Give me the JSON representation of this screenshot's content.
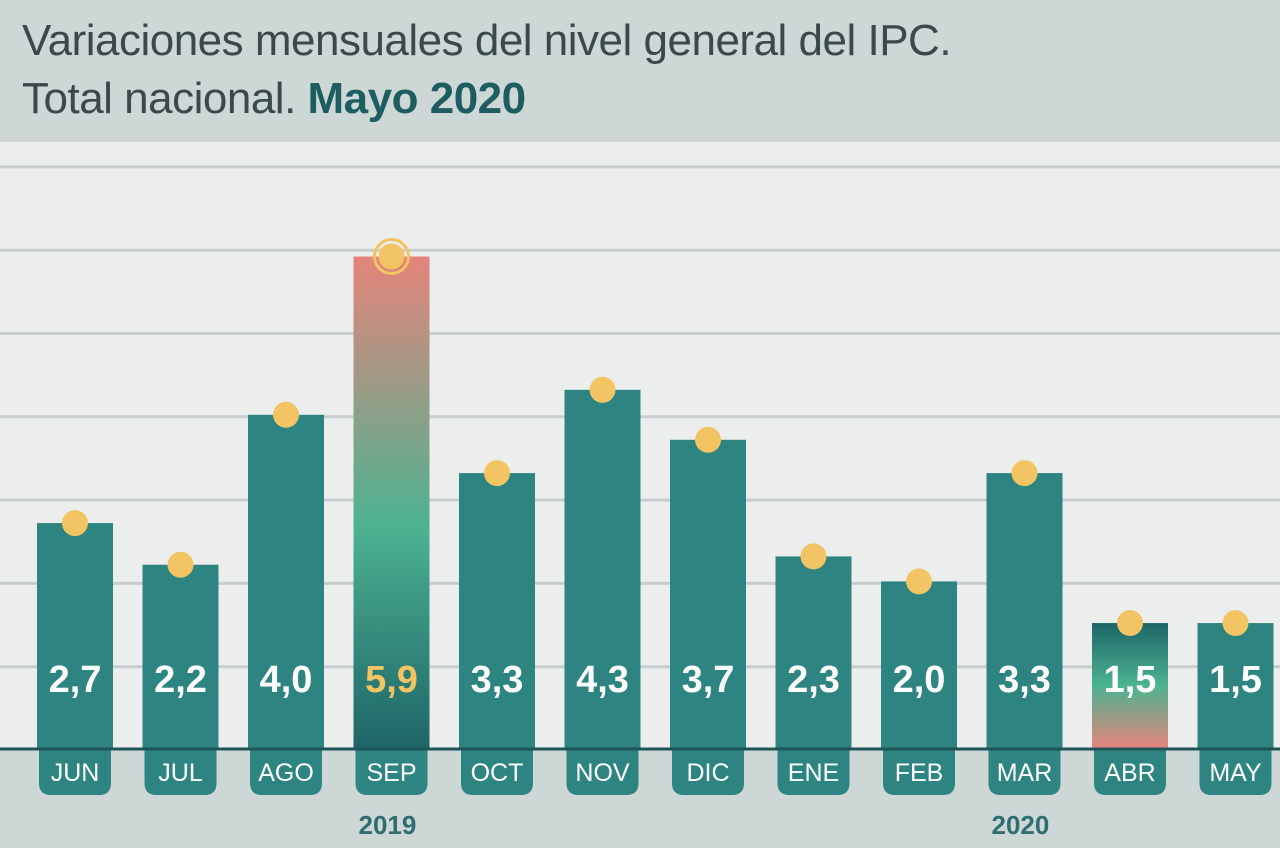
{
  "header": {
    "title_line1": "Variaciones mensuales del nivel general del IPC.",
    "title_line2_plain": "Total nacional.",
    "title_line2_accent": "Mayo 2020"
  },
  "chart_data": {
    "type": "bar",
    "title": "Variaciones mensuales del nivel general del IPC. Total nacional. Mayo 2020",
    "categories": [
      "JUN",
      "JUL",
      "AGO",
      "SEP",
      "OCT",
      "NOV",
      "DIC",
      "ENE",
      "FEB",
      "MAR",
      "ABR",
      "MAY"
    ],
    "values": [
      2.7,
      2.2,
      4.0,
      5.9,
      3.3,
      4.3,
      3.7,
      2.3,
      2.0,
      3.3,
      1.5,
      1.5
    ],
    "value_labels": [
      "2,7",
      "2,2",
      "4,0",
      "5,9",
      "3,3",
      "4,3",
      "3,7",
      "2,3",
      "2,0",
      "3,3",
      "1,5",
      "1,5"
    ],
    "year_labels": [
      {
        "text": "2019",
        "category": "SEP"
      },
      {
        "text": "2020",
        "category": "MAR"
      }
    ],
    "highlight_max": "SEP",
    "highlight_min": "ABR",
    "ylim": [
      0,
      7.2
    ],
    "grid": true,
    "colors": {
      "bar": "#2e8481",
      "marker": "#f3c463",
      "max_top": "#e5847b",
      "max_mid": "#4cb391",
      "max_bottom": "#1e6568",
      "max_label": "#f3c463",
      "axis_line": "#1f5558",
      "tab": "#2e8481",
      "label_text": "#ffffff"
    }
  }
}
